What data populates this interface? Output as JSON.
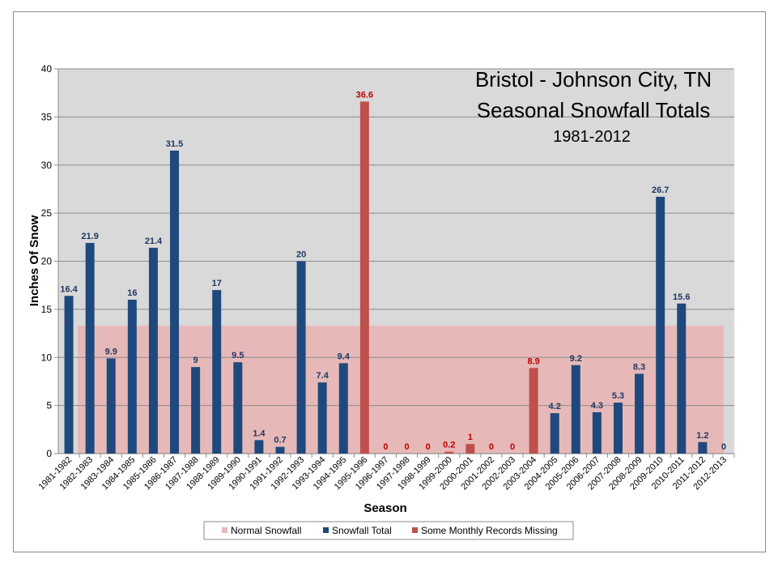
{
  "chart_data": {
    "type": "bar",
    "title_lines": [
      "Bristol - Johnson City, TN",
      "Seasonal Snowfall Totals"
    ],
    "subtitle": "1981-2012",
    "xlabel": "Season",
    "ylabel": "Inches Of Snow",
    "ylim": [
      0,
      40
    ],
    "yticks": [
      0,
      5,
      10,
      15,
      20,
      25,
      30,
      35,
      40
    ],
    "grid": true,
    "legend_position": "bottom",
    "normal_snowfall": 13.3,
    "categories": [
      "1981-1982",
      "1982-1983",
      "1983-1984",
      "1984-1985",
      "1985-1986",
      "1986-1987",
      "1987-1988",
      "1988-1989",
      "1989-1990",
      "1990-1991",
      "1991-1992",
      "1992-1993",
      "1993-1994",
      "1994-1995",
      "1995-1996",
      "1996-1997",
      "1997-1998",
      "1998-1999",
      "1999-2000",
      "2000-2001",
      "2001-2002",
      "2002-2003",
      "2003-2004",
      "2004-2005",
      "2005-2006",
      "2006-2007",
      "2007-2008",
      "2008-2009",
      "2009-2010",
      "2010-2011",
      "2011-2012",
      "2012-2013"
    ],
    "values": [
      16.4,
      21.9,
      9.9,
      16,
      21.4,
      31.5,
      9,
      17,
      9.5,
      1.4,
      0.7,
      20,
      7.4,
      9.4,
      36.6,
      0,
      0,
      0,
      0.2,
      1,
      0,
      0,
      8.9,
      4.2,
      9.2,
      4.3,
      5.3,
      8.3,
      26.7,
      15.6,
      1.2,
      0
    ],
    "value_labels": [
      "16.4",
      "21.9",
      "9.9",
      "16",
      "21.4",
      "31.5",
      "9",
      "17",
      "9.5",
      "1.4",
      "0.7",
      "20",
      "7.4",
      "9.4",
      "36.6",
      "0",
      "0",
      "0",
      "0.2",
      "1",
      "0",
      "0",
      "8.9",
      "4.2",
      "9.2",
      "4.3",
      "5.3",
      "8.3",
      "26.7",
      "15.6",
      "1.2",
      "0"
    ],
    "series_membership": [
      "total",
      "total",
      "total",
      "total",
      "total",
      "total",
      "total",
      "total",
      "total",
      "total",
      "total",
      "total",
      "total",
      "total",
      "missing",
      "missing",
      "missing",
      "missing",
      "missing",
      "missing",
      "missing",
      "missing",
      "missing",
      "total",
      "total",
      "total",
      "total",
      "total",
      "total",
      "total",
      "total",
      "total"
    ],
    "legend": [
      {
        "key": "normal",
        "label": "Normal Snowfall",
        "color": "#e6b9b8"
      },
      {
        "key": "total",
        "label": "Snowfall Total",
        "color": "#1f497d"
      },
      {
        "key": "missing",
        "label": "Some Monthly Records Missing",
        "color": "#c0504d"
      }
    ],
    "colors": {
      "plot_bg": "#d9d9d9",
      "normal_band": "#e6b9b8",
      "total_bar": "#1f497d",
      "total_label": "#1f3864",
      "missing_bar": "#c0504d",
      "missing_label": "#c00000",
      "grid": "#8c8c8c"
    }
  }
}
